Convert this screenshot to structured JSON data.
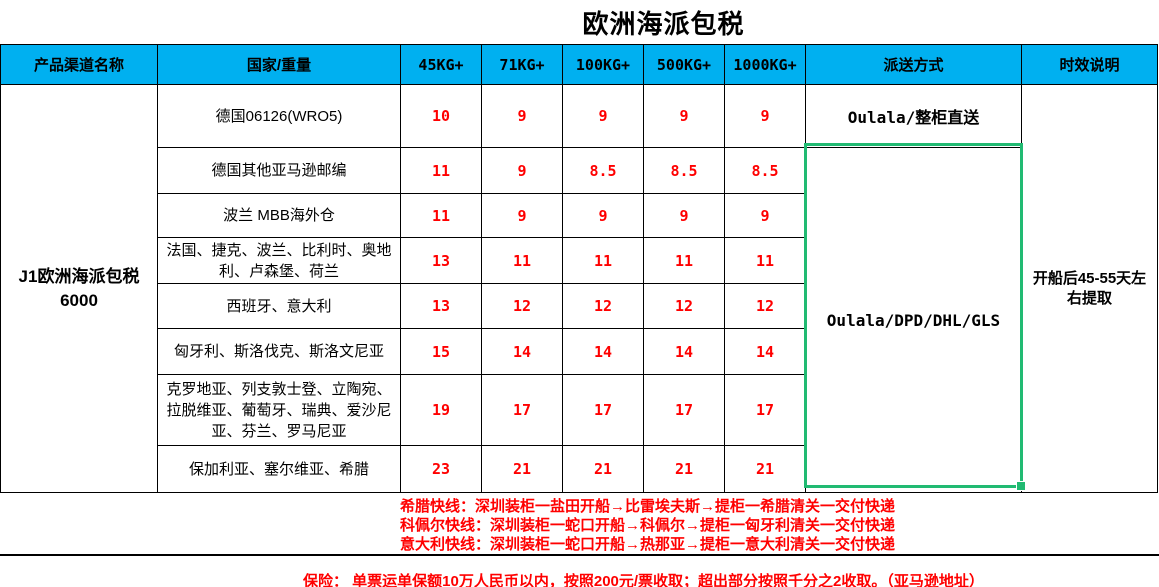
{
  "title": "欧洲海派包税",
  "table": {
    "headers": [
      "产品渠道名称",
      "国家/重量",
      "45KG+",
      "71KG+",
      "100KG+",
      "500KG+",
      "1000KG+",
      "派送方式",
      "时效说明"
    ],
    "product_name": "J1欧洲海派包税",
    "product_code": "6000",
    "delivery_row1": "Oulala/整柜直送",
    "delivery_merged": "Oulala/DPD/DHL/GLS",
    "lead_time": "开船后45-55天左右提取",
    "rows": [
      {
        "country": "德国06126(WRO5)",
        "rates": [
          "10",
          "9",
          "9",
          "9",
          "9"
        ]
      },
      {
        "country": "德国其他亚马逊邮编",
        "rates": [
          "11",
          "9",
          "8.5",
          "8.5",
          "8.5"
        ]
      },
      {
        "country": "波兰 MBB海外仓",
        "rates": [
          "11",
          "9",
          "9",
          "9",
          "9"
        ]
      },
      {
        "country": "法国、捷克、波兰、比利时、奥地利、卢森堡、荷兰",
        "rates": [
          "13",
          "11",
          "11",
          "11",
          "11"
        ]
      },
      {
        "country": "西班牙、意大利",
        "rates": [
          "13",
          "12",
          "12",
          "12",
          "12"
        ]
      },
      {
        "country": "匈牙利、斯洛伐克、斯洛文尼亚",
        "rates": [
          "15",
          "14",
          "14",
          "14",
          "14"
        ]
      },
      {
        "country": "克罗地亚、列支敦士登、立陶宛、拉脱维亚、葡萄牙、瑞典、爱沙尼亚、芬兰、罗马尼亚",
        "rates": [
          "19",
          "17",
          "17",
          "17",
          "17"
        ]
      },
      {
        "country": "保加利亚、塞尔维亚、希腊",
        "rates": [
          "23",
          "21",
          "21",
          "21",
          "21"
        ]
      }
    ]
  },
  "notes": [
    "希腊快线：深圳装柜一盐田开船→比雷埃夫斯→提柜一希腊清关一交付快递",
    "科佩尔快线：深圳装柜一蛇口开船→科佩尔→提柜一匈牙利清关一交付快递",
    "意大利快线：深圳装柜一蛇口开船→热那亚→提柜一意大利清关一交付快递"
  ],
  "insurance": "保险：  单票运单保额10万人民币以内，按照200元/票收取；超出部分按照千分之2收取。（亚马逊地址）",
  "colors": {
    "header_bg": "#00B0F0",
    "rate_text": "#FF0000",
    "selection_green": "#21BA72"
  }
}
